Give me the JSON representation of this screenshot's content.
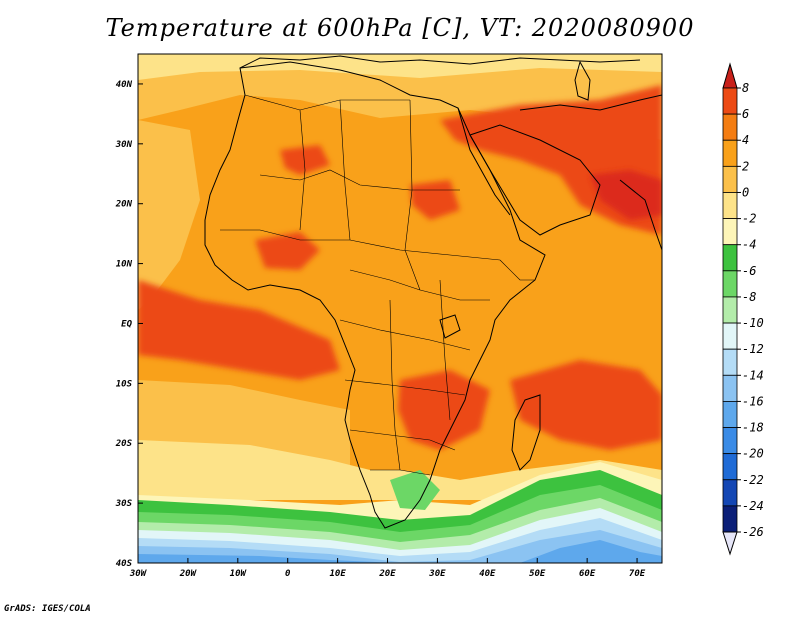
{
  "title": "Temperature at 600hPa [C], VT: 2020080900",
  "credit": "GrADS: IGES/COLA",
  "map": {
    "lon_range": [
      -30,
      75
    ],
    "lat_range": [
      -40,
      45
    ],
    "lon_ticks": [
      {
        "value": -30,
        "label": "30W"
      },
      {
        "value": -20,
        "label": "20W"
      },
      {
        "value": -10,
        "label": "10W"
      },
      {
        "value": 0,
        "label": "0"
      },
      {
        "value": 10,
        "label": "10E"
      },
      {
        "value": 20,
        "label": "20E"
      },
      {
        "value": 30,
        "label": "30E"
      },
      {
        "value": 40,
        "label": "40E"
      },
      {
        "value": 50,
        "label": "50E"
      },
      {
        "value": 60,
        "label": "60E"
      },
      {
        "value": 70,
        "label": "70E"
      }
    ],
    "lat_ticks": [
      {
        "value": 40,
        "label": "40N"
      },
      {
        "value": 30,
        "label": "30N"
      },
      {
        "value": 20,
        "label": "20N"
      },
      {
        "value": 10,
        "label": "10N"
      },
      {
        "value": 0,
        "label": "EQ"
      },
      {
        "value": -10,
        "label": "10S"
      },
      {
        "value": -20,
        "label": "20S"
      },
      {
        "value": -30,
        "label": "30S"
      },
      {
        "value": -40,
        "label": "40S"
      }
    ]
  },
  "colorbar": {
    "levels": [
      {
        "label": "8",
        "color": "#dc2a1e"
      },
      {
        "label": "6",
        "color": "#ec4a14"
      },
      {
        "label": "4",
        "color": "#f47d12"
      },
      {
        "label": "2",
        "color": "#f9a11a"
      },
      {
        "label": "0",
        "color": "#fbc04a"
      },
      {
        "label": "-2",
        "color": "#fde389"
      },
      {
        "label": "-4",
        "color": "#fdf5b8"
      },
      {
        "label": "-6",
        "color": "#3dc23f"
      },
      {
        "label": "-8",
        "color": "#6cd766"
      },
      {
        "label": "-10",
        "color": "#b3ecaa"
      },
      {
        "label": "-12",
        "color": "#e2f6f8"
      },
      {
        "label": "-14",
        "color": "#b4dcf6"
      },
      {
        "label": "-16",
        "color": "#8bc3f2"
      },
      {
        "label": "-18",
        "color": "#5ea8ec"
      },
      {
        "label": "-20",
        "color": "#3a8be6"
      },
      {
        "label": "-22",
        "color": "#1f6bd6"
      },
      {
        "label": "-24",
        "color": "#1447b4"
      },
      {
        "label": "-26",
        "color": "#0b1f78"
      }
    ],
    "over_color": "#c8201a",
    "under_color": "#e6e6f8"
  }
}
